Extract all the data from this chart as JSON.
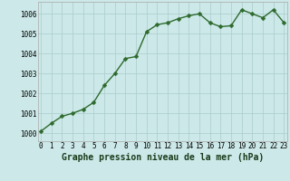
{
  "x": [
    0,
    1,
    2,
    3,
    4,
    5,
    6,
    7,
    8,
    9,
    10,
    11,
    12,
    13,
    14,
    15,
    16,
    17,
    18,
    19,
    20,
    21,
    22,
    23
  ],
  "y": [
    1000.1,
    1000.5,
    1000.85,
    1001.0,
    1001.2,
    1001.55,
    1002.4,
    1003.0,
    1003.75,
    1003.85,
    1005.1,
    1005.45,
    1005.55,
    1005.75,
    1005.9,
    1006.0,
    1005.55,
    1005.35,
    1005.4,
    1006.2,
    1006.0,
    1005.8,
    1006.2,
    1005.55
  ],
  "line_color": "#2d6a2d",
  "marker": "D",
  "marker_size": 2.5,
  "bg_color": "#cce8e8",
  "grid_color": "#aacccc",
  "xlabel": "Graphe pression niveau de la mer (hPa)",
  "xlabel_fontsize": 7,
  "ylabel_ticks": [
    1000,
    1001,
    1002,
    1003,
    1004,
    1005,
    1006
  ],
  "xticks": [
    0,
    1,
    2,
    3,
    4,
    5,
    6,
    7,
    8,
    9,
    10,
    11,
    12,
    13,
    14,
    15,
    16,
    17,
    18,
    19,
    20,
    21,
    22,
    23
  ],
  "ylim": [
    999.6,
    1006.6
  ],
  "xlim": [
    -0.3,
    23.3
  ],
  "tick_fontsize": 5.5,
  "line_width": 1.0
}
